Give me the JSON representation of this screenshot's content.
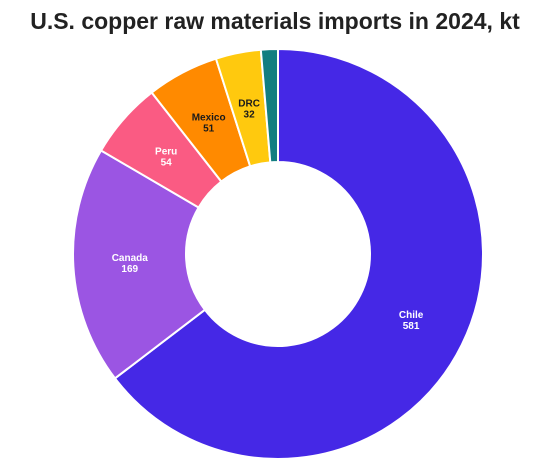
{
  "chart_data": {
    "type": "pie",
    "title": "U.S. copper raw materials imports in 2024, kt",
    "categories": [
      "Chile",
      "Canada",
      "Peru",
      "Mexico",
      "DRC",
      ""
    ],
    "values": [
      581,
      169,
      54,
      51,
      32,
      12
    ],
    "value_labels": [
      "581",
      "169",
      "54",
      "51",
      "32",
      ""
    ],
    "colors": [
      "#4528e6",
      "#9b55e3",
      "#fa5b83",
      "#ff8a00",
      "#ffc90e",
      "#127e80"
    ],
    "label_colors": [
      "#ffffff",
      "#ffffff",
      "#ffffff",
      "#1a1a1a",
      "#1a1a1a",
      "#ffffff"
    ],
    "donut": true,
    "start_angle_deg": 0,
    "direction": "clockwise",
    "legend": "none"
  }
}
